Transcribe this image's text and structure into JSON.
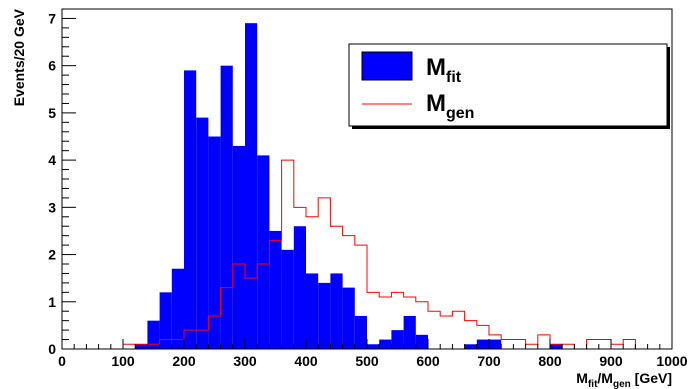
{
  "chart_data": {
    "type": "bar",
    "title": "",
    "xlabel_parts": {
      "main": "M",
      "sub1": "fit",
      "mid": "/M",
      "sub2": "gen",
      "tail": " [GeV]"
    },
    "ylabel": "Events/20 GeV",
    "xlim": [
      0,
      1000
    ],
    "ylim": [
      0,
      7.2
    ],
    "xticks": [
      "0",
      "100",
      "200",
      "300",
      "400",
      "500",
      "600",
      "700",
      "800",
      "900",
      "1000"
    ],
    "yticks": [
      "0",
      "1",
      "2",
      "3",
      "4",
      "5",
      "6",
      "7"
    ],
    "bin_width": 20,
    "grid": false,
    "legend_position": "top-right",
    "series": [
      {
        "name_main": "M",
        "name_sub": "fit",
        "style": "filled",
        "color": "#0000ff",
        "bin_lows": [
          120,
          140,
          160,
          180,
          200,
          220,
          240,
          260,
          280,
          300,
          320,
          340,
          360,
          380,
          400,
          420,
          440,
          460,
          480,
          500,
          520,
          540,
          560,
          580,
          600,
          620,
          640,
          660,
          680,
          700,
          720,
          740,
          760,
          780,
          800,
          820
        ],
        "values": [
          0.1,
          0.6,
          1.2,
          1.7,
          5.9,
          4.9,
          4.5,
          6.0,
          4.3,
          6.9,
          4.1,
          2.5,
          2.1,
          2.6,
          1.6,
          1.4,
          1.6,
          1.3,
          0.7,
          0.1,
          0.2,
          0.4,
          0.7,
          0.3,
          0.0,
          0.0,
          0.0,
          0.1,
          0.2,
          0.2,
          0.0,
          0.0,
          0.0,
          0.0,
          0.1,
          0.0
        ]
      },
      {
        "name_main": "M",
        "name_sub": "gen",
        "style": "step",
        "color": "#ff0000",
        "bin_lows": [
          100,
          120,
          140,
          160,
          180,
          200,
          220,
          240,
          260,
          280,
          300,
          320,
          340,
          360,
          380,
          400,
          420,
          440,
          460,
          480,
          500,
          520,
          540,
          560,
          580,
          600,
          620,
          640,
          660,
          680,
          700,
          720,
          740,
          760,
          780,
          800,
          820,
          840,
          860,
          880,
          900,
          920
        ],
        "values": [
          0.1,
          0.1,
          0.1,
          0.2,
          0.2,
          0.4,
          0.4,
          0.7,
          1.3,
          1.8,
          1.5,
          1.8,
          2.3,
          4.0,
          3.0,
          2.8,
          3.2,
          2.6,
          2.4,
          2.2,
          1.2,
          1.1,
          1.2,
          1.1,
          1.0,
          0.8,
          0.7,
          0.8,
          0.6,
          0.5,
          0.3,
          0.2,
          0.2,
          0.1,
          0.3,
          0.1,
          0.1,
          0.0,
          0.2,
          0.2,
          0.1,
          0.2
        ]
      }
    ]
  }
}
